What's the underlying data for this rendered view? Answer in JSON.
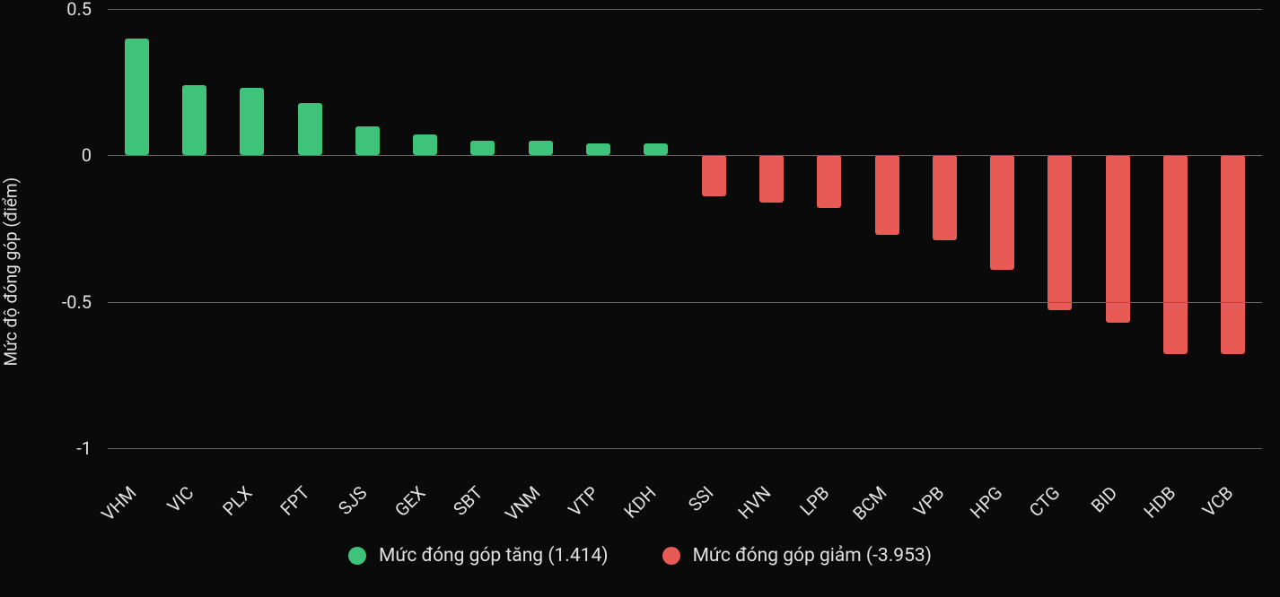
{
  "chart": {
    "type": "bar",
    "background_color": "#0a0a0a",
    "text_color": "#e0e0e0",
    "grid_color": "#666666",
    "y_axis": {
      "title": "Mức độ đóng góp (điểm)",
      "title_fontsize": 19,
      "min": -1,
      "max": 0.5,
      "tick_step": 0.5,
      "ticks": [
        {
          "value": 0.5,
          "label": "0.5"
        },
        {
          "value": 0,
          "label": "0"
        },
        {
          "value": -0.5,
          "label": "-0.5"
        },
        {
          "value": -1,
          "label": "-1"
        }
      ],
      "tick_fontsize": 20
    },
    "x_axis": {
      "tick_fontsize": 20,
      "tick_rotation_deg": -45
    },
    "bar_width_ratio": 0.42,
    "bar_border_radius": 3,
    "colors": {
      "positive": "#3fc27a",
      "negative": "#e85b54"
    },
    "data": [
      {
        "label": "VHM",
        "value": 0.4
      },
      {
        "label": "VIC",
        "value": 0.24
      },
      {
        "label": "PLX",
        "value": 0.23
      },
      {
        "label": "FPT",
        "value": 0.18
      },
      {
        "label": "SJS",
        "value": 0.1
      },
      {
        "label": "GEX",
        "value": 0.07
      },
      {
        "label": "SBT",
        "value": 0.05
      },
      {
        "label": "VNM",
        "value": 0.05
      },
      {
        "label": "VTP",
        "value": 0.04
      },
      {
        "label": "KDH",
        "value": 0.04
      },
      {
        "label": "SSI",
        "value": -0.14
      },
      {
        "label": "HVN",
        "value": -0.16
      },
      {
        "label": "LPB",
        "value": -0.18
      },
      {
        "label": "BCM",
        "value": -0.27
      },
      {
        "label": "VPB",
        "value": -0.29
      },
      {
        "label": "HPG",
        "value": -0.39
      },
      {
        "label": "CTG",
        "value": -0.53
      },
      {
        "label": "BID",
        "value": -0.57
      },
      {
        "label": "HDB",
        "value": -0.68
      },
      {
        "label": "VCB",
        "value": -0.68
      }
    ],
    "legend": {
      "fontsize": 21,
      "items": [
        {
          "label": "Mức đóng góp tăng (1.414)",
          "color": "#3fc27a"
        },
        {
          "label": "Mức đóng góp giảm (-3.953)",
          "color": "#e85b54"
        }
      ]
    }
  }
}
